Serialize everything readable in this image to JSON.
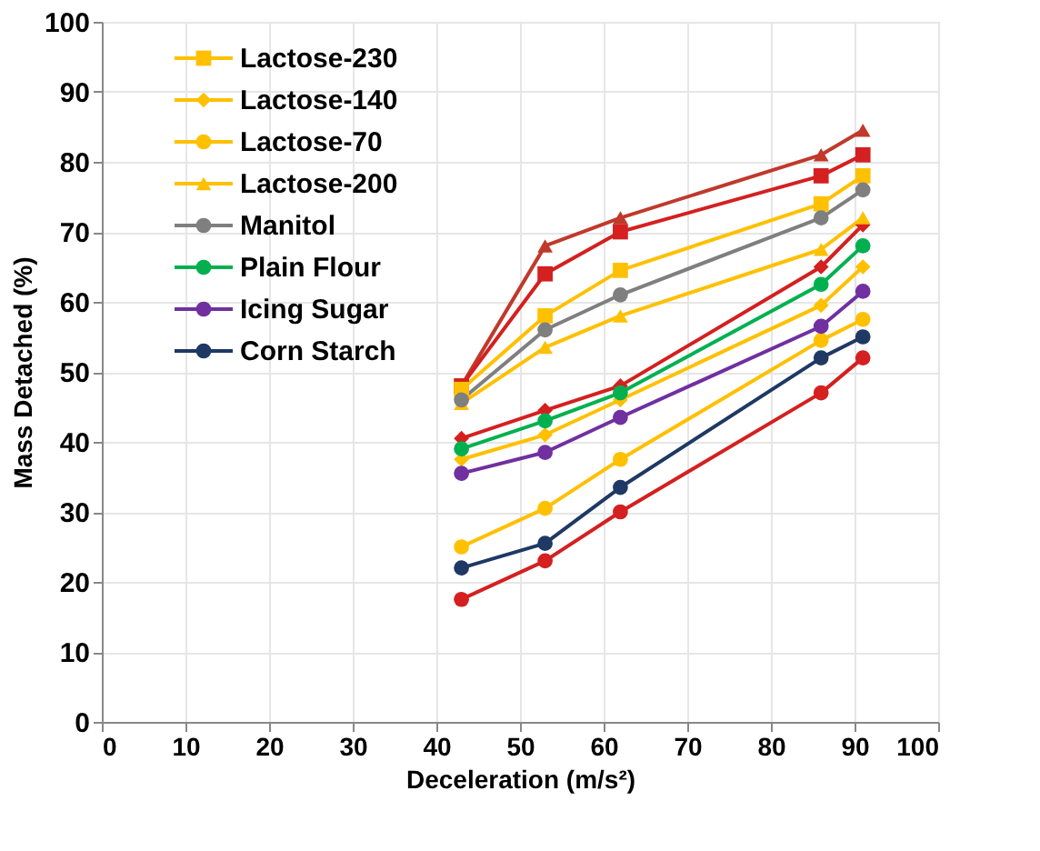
{
  "chart_data": {
    "type": "line",
    "xlabel": "Deceleration (m/s²)",
    "ylabel": "Mass Detached (%)",
    "x": [
      43,
      53,
      62,
      86,
      91
    ],
    "xlim": [
      0,
      100
    ],
    "xticks": [
      0,
      10,
      20,
      30,
      40,
      50,
      60,
      70,
      80,
      90,
      100
    ],
    "ylim": [
      0,
      100
    ],
    "yticks": [
      0,
      10,
      20,
      30,
      40,
      50,
      60,
      70,
      80,
      90,
      100
    ],
    "grid": true,
    "legend": "top left",
    "line_style": "solid",
    "series": [
      {
        "color": "#c0392b",
        "marker": "triangle",
        "values": [
          48,
          68,
          72,
          81,
          84.5
        ]
      },
      {
        "color": "#d42020",
        "marker": "square",
        "values": [
          48,
          64,
          70,
          78,
          81
        ]
      },
      {
        "color": "#d42020",
        "marker": "diamond",
        "values": [
          40.5,
          44.5,
          48,
          65,
          71
        ]
      },
      {
        "color": "#d42020",
        "marker": "circle",
        "values": [
          17.5,
          23,
          30,
          47,
          52
        ]
      },
      {
        "name": "Lactose-230",
        "color": "#ffc000",
        "marker": "square",
        "values": [
          47.5,
          58,
          64.5,
          74,
          78
        ]
      },
      {
        "name": "Lactose-140",
        "color": "#ffc000",
        "marker": "diamond",
        "values": [
          37.5,
          41,
          46,
          59.5,
          65
        ]
      },
      {
        "name": "Lactose-70",
        "color": "#ffc000",
        "marker": "circle",
        "values": [
          25,
          30.5,
          37.5,
          54.5,
          57.5
        ]
      },
      {
        "name": "Lactose-200",
        "color": "#ffc000",
        "marker": "triangle",
        "values": [
          45.5,
          53.5,
          58,
          67.5,
          72
        ]
      },
      {
        "name": "Manitol",
        "color": "#7f7f7f",
        "marker": "circle",
        "values": [
          46,
          56,
          61,
          72,
          76
        ]
      },
      {
        "name": "Plain Flour",
        "color": "#00b050",
        "marker": "circle",
        "values": [
          39,
          43,
          47,
          62.5,
          68
        ]
      },
      {
        "name": "Icing Sugar",
        "color": "#7030a0",
        "marker": "circle",
        "values": [
          35.5,
          38.5,
          43.5,
          56.5,
          61.5
        ]
      },
      {
        "name": "Corn Starch",
        "color": "#1f3864",
        "marker": "circle",
        "values": [
          22,
          25.5,
          33.5,
          52,
          55
        ]
      }
    ]
  }
}
